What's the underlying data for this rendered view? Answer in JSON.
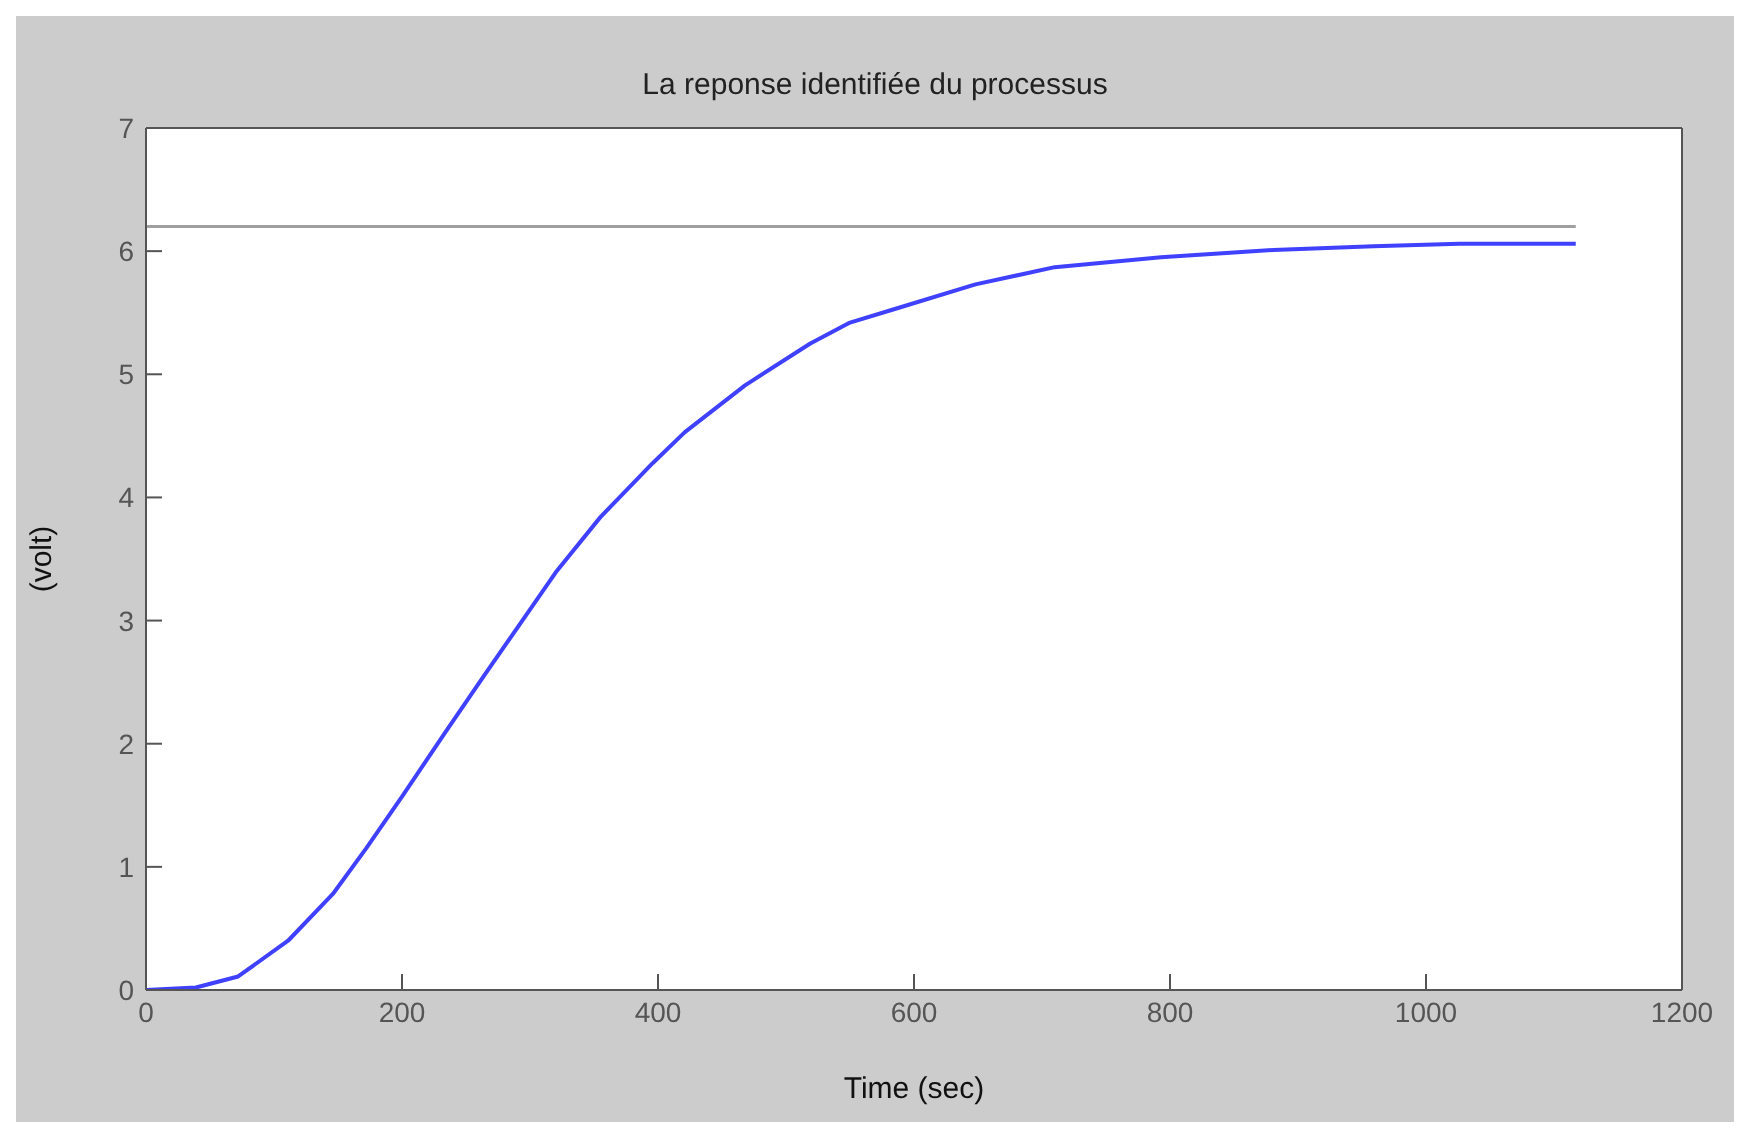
{
  "chart_data": {
    "type": "line",
    "title": "La reponse identifiée du processus",
    "xlabel": "Time (sec)",
    "ylabel": "(volt)",
    "xlim": [
      0,
      1200
    ],
    "xticks": [
      0,
      200,
      400,
      600,
      800,
      1000,
      1200
    ],
    "ylim": [
      0,
      7
    ],
    "yticks": [
      0,
      1,
      2,
      3,
      4,
      5,
      6,
      7
    ],
    "marker": "none",
    "line_style": "solid",
    "series": [
      {
        "color": "#4040ff",
        "x": [
          0,
          39,
          72,
          111,
          146,
          172,
          200,
          233,
          264,
          294,
          320,
          355,
          396,
          421,
          468,
          519,
          550,
          585,
          648,
          710,
          793,
          881,
          959,
          1026,
          1117
        ],
        "values": [
          0,
          0.02,
          0.11,
          0.4,
          0.78,
          1.15,
          1.57,
          2.08,
          2.55,
          3.0,
          3.39,
          3.84,
          4.28,
          4.53,
          4.91,
          5.25,
          5.42,
          5.53,
          5.73,
          5.87,
          5.95,
          6.01,
          6.04,
          6.06,
          6.06
        ]
      },
      {
        "color": "#a0a0a0",
        "x": [
          0,
          1117
        ],
        "values": [
          6.2,
          6.2
        ]
      }
    ]
  }
}
